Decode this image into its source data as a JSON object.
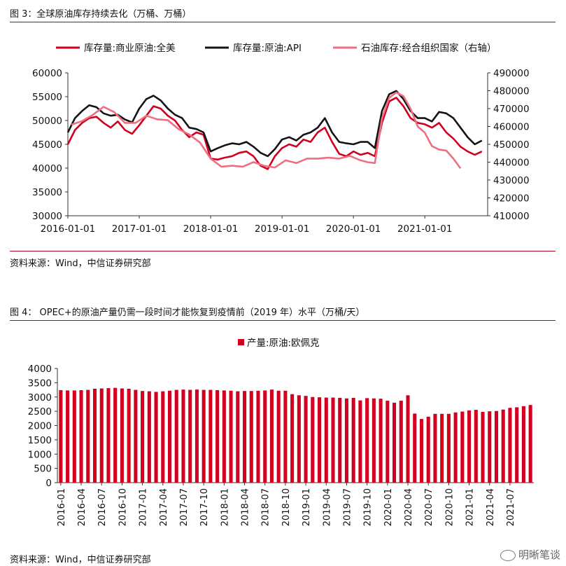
{
  "figure3": {
    "title": "图 3：全球原油库存持续去化（万桶、万桶）",
    "source": "资料来源：Wind，中信证券研究部"
  },
  "figure4": {
    "title": "图 4：  OPEC+的原油产量仍需一段时间才能恢复到疫情前（2019 年）水平（万桶/天）",
    "source": "资料来源：Wind，中信证券研究部"
  },
  "watermark": {
    "text": "明晰笔谈",
    "icon": "wechat-icon"
  },
  "colors": {
    "red": "#d2001e",
    "black": "#141414",
    "pink": "#f06e82",
    "axis": "#333333",
    "rule": "#b3001b"
  },
  "chart_data": [
    {
      "type": "line",
      "title": "全球原油库存持续去化（万桶、万桶）",
      "x_tick_labels": [
        "2016-01-01",
        "2017-01-01",
        "2018-01-01",
        "2019-01-01",
        "2020-01-01",
        "2021-01-01"
      ],
      "x_ticks": [
        2016.0,
        2017.0,
        2018.0,
        2019.0,
        2020.0,
        2021.0
      ],
      "xlim": [
        2016.0,
        2021.88
      ],
      "ylim_left": [
        30000,
        60000
      ],
      "y_ticks_left": [
        30000,
        35000,
        40000,
        45000,
        50000,
        55000,
        60000
      ],
      "y_tick_labels_left": [
        "30000",
        "35000",
        "40000",
        "45000",
        "50000",
        "55000",
        "60000"
      ],
      "ylim_right": [
        410000,
        490000
      ],
      "y_ticks_right": [
        410000,
        420000,
        430000,
        440000,
        450000,
        460000,
        470000,
        480000,
        490000
      ],
      "y_tick_labels_right": [
        "410000",
        "420000",
        "430000",
        "440000",
        "450000",
        "460000",
        "470000",
        "480000",
        "490000"
      ],
      "legend_position": "top",
      "series": [
        {
          "name": "库存量:商业原油:全美",
          "axis": "left",
          "color": "#d2001e",
          "x": [
            2016.0,
            2016.1,
            2016.2,
            2016.3,
            2016.4,
            2016.5,
            2016.6,
            2016.7,
            2016.8,
            2016.9,
            2017.0,
            2017.1,
            2017.2,
            2017.3,
            2017.4,
            2017.5,
            2017.6,
            2017.7,
            2017.8,
            2017.9,
            2018.0,
            2018.1,
            2018.2,
            2018.3,
            2018.4,
            2018.5,
            2018.6,
            2018.7,
            2018.8,
            2018.9,
            2019.0,
            2019.1,
            2019.2,
            2019.3,
            2019.4,
            2019.5,
            2019.6,
            2019.7,
            2019.8,
            2019.9,
            2020.0,
            2020.1,
            2020.2,
            2020.3,
            2020.4,
            2020.5,
            2020.6,
            2020.7,
            2020.8,
            2020.9,
            2021.0,
            2021.1,
            2021.2,
            2021.3,
            2021.4,
            2021.5,
            2021.6,
            2021.7,
            2021.8
          ],
          "values": [
            45000,
            48000,
            49500,
            50500,
            50800,
            49500,
            48500,
            49800,
            48000,
            47200,
            49000,
            51000,
            53000,
            52500,
            51000,
            50000,
            48000,
            46500,
            47500,
            47000,
            42000,
            41800,
            42200,
            42500,
            43200,
            43500,
            42500,
            40500,
            39800,
            42500,
            44200,
            45000,
            44500,
            46000,
            45500,
            47500,
            48500,
            45500,
            43000,
            42500,
            43500,
            42800,
            43200,
            42500,
            49500,
            54000,
            54800,
            53000,
            50500,
            49500,
            49200,
            48500,
            49500,
            47500,
            46200,
            44500,
            43500,
            42800,
            43500
          ]
        },
        {
          "name": "库存量:原油:API",
          "axis": "left",
          "color": "#141414",
          "x": [
            2016.0,
            2016.1,
            2016.2,
            2016.3,
            2016.4,
            2016.5,
            2016.6,
            2016.7,
            2016.8,
            2016.9,
            2017.0,
            2017.1,
            2017.2,
            2017.3,
            2017.4,
            2017.5,
            2017.6,
            2017.7,
            2017.8,
            2017.9,
            2018.0,
            2018.1,
            2018.2,
            2018.3,
            2018.4,
            2018.5,
            2018.6,
            2018.7,
            2018.8,
            2018.9,
            2019.0,
            2019.1,
            2019.2,
            2019.3,
            2019.4,
            2019.5,
            2019.6,
            2019.7,
            2019.8,
            2019.9,
            2020.0,
            2020.1,
            2020.2,
            2020.3,
            2020.4,
            2020.5,
            2020.6,
            2020.7,
            2020.8,
            2020.9,
            2021.0,
            2021.1,
            2021.2,
            2021.3,
            2021.4,
            2021.5,
            2021.6,
            2021.7,
            2021.8
          ],
          "values": [
            47500,
            50500,
            52000,
            53200,
            52800,
            51500,
            51000,
            51200,
            50200,
            49600,
            52500,
            54500,
            55200,
            54200,
            52500,
            51200,
            50500,
            48500,
            48200,
            47500,
            43500,
            44200,
            44800,
            45200,
            45000,
            45500,
            44500,
            43200,
            42500,
            44000,
            46000,
            46500,
            45800,
            47000,
            47500,
            48500,
            50500,
            47500,
            45500,
            45200,
            45000,
            45500,
            45500,
            44200,
            52000,
            55500,
            56200,
            54500,
            52000,
            50500,
            50500,
            49800,
            51800,
            51500,
            50500,
            48500,
            46500,
            45000,
            45800
          ]
        },
        {
          "name": "石油库存:经合组织国家（右轴）",
          "axis": "right",
          "color": "#f06e82",
          "x": [
            2016.05,
            2016.2,
            2016.35,
            2016.5,
            2016.65,
            2016.8,
            2016.95,
            2017.1,
            2017.25,
            2017.4,
            2017.55,
            2017.7,
            2017.85,
            2018.0,
            2018.15,
            2018.3,
            2018.45,
            2018.6,
            2018.75,
            2018.9,
            2019.05,
            2019.2,
            2019.35,
            2019.5,
            2019.65,
            2019.8,
            2019.95,
            2020.1,
            2020.2,
            2020.3,
            2020.4,
            2020.5,
            2020.6,
            2020.7,
            2020.8,
            2020.9,
            2021.0,
            2021.1,
            2021.2,
            2021.3,
            2021.4,
            2021.5
          ],
          "values": [
            461000,
            463000,
            466500,
            471000,
            468000,
            462000,
            462000,
            466000,
            464000,
            463500,
            458500,
            455500,
            451000,
            442000,
            437500,
            438000,
            437500,
            440000,
            438000,
            437000,
            441000,
            439500,
            442000,
            442000,
            442500,
            442000,
            443500,
            441000,
            440000,
            439500,
            464500,
            476000,
            479000,
            477000,
            470000,
            460000,
            456500,
            449000,
            447000,
            446500,
            442000,
            436500
          ]
        }
      ]
    },
    {
      "type": "bar",
      "title": "OPEC+的原油产量仍需一段时间才能恢复到疫情前（2019 年）水平（万桶/天）",
      "legend": "产量:原油:欧佩克",
      "legend_position": "top",
      "ylim": [
        0,
        4000
      ],
      "y_ticks": [
        0,
        500,
        1000,
        1500,
        2000,
        2500,
        3000,
        3500,
        4000
      ],
      "y_tick_labels": [
        "0",
        "500",
        "1000",
        "1500",
        "2000",
        "2500",
        "3000",
        "3500",
        "4000"
      ],
      "x_tick_labels": [
        "2016-01",
        "2016-04",
        "2016-07",
        "2016-10",
        "2017-01",
        "2017-04",
        "2017-07",
        "2017-10",
        "2018-01",
        "2018-04",
        "2018-07",
        "2018-10",
        "2019-01",
        "2019-04",
        "2019-07",
        "2019-10",
        "2020-01",
        "2020-04",
        "2020-07",
        "2020-10",
        "2021-01",
        "2021-04",
        "2021-07"
      ],
      "values": [
        3240,
        3230,
        3230,
        3240,
        3250,
        3290,
        3300,
        3310,
        3320,
        3300,
        3290,
        3250,
        3210,
        3200,
        3180,
        3200,
        3220,
        3250,
        3260,
        3250,
        3260,
        3250,
        3250,
        3240,
        3230,
        3220,
        3200,
        3210,
        3210,
        3220,
        3230,
        3260,
        3220,
        3220,
        3100,
        3060,
        3040,
        3000,
        2990,
        2980,
        2980,
        2970,
        2950,
        2970,
        2880,
        2960,
        2950,
        2940,
        2870,
        2800,
        2870,
        3060,
        2420,
        2230,
        2310,
        2410,
        2410,
        2410,
        2460,
        2490,
        2530,
        2550,
        2480,
        2500,
        2510,
        2560,
        2620,
        2640,
        2680,
        2720
      ]
    }
  ]
}
